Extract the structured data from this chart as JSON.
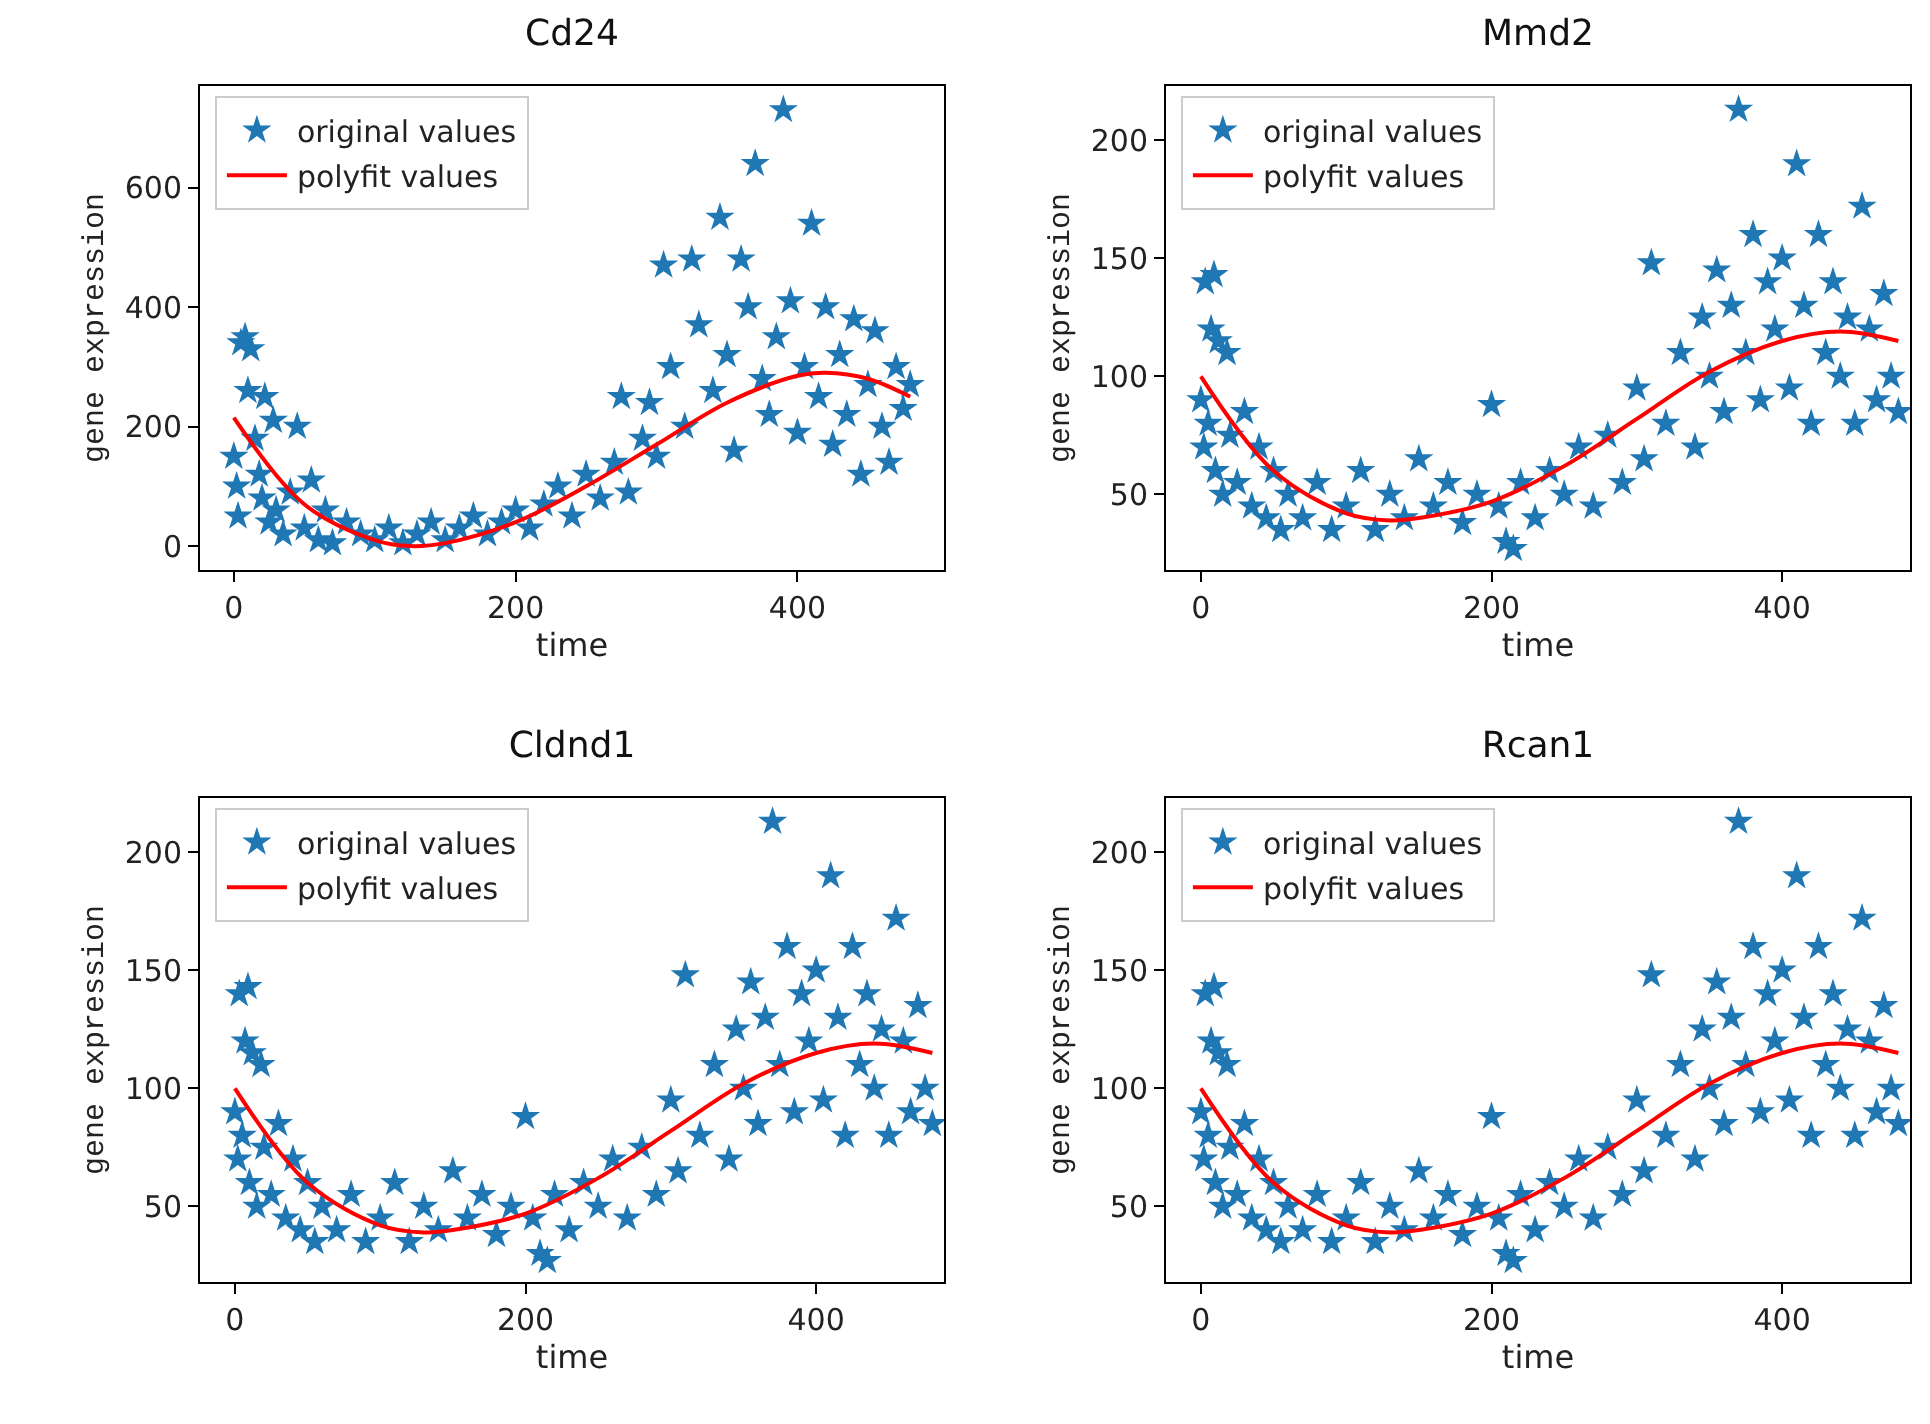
{
  "chart_data": [
    {
      "type": "scatter",
      "title": "Cd24",
      "xlabel": "time",
      "ylabel": "gene expression",
      "xlim": [
        -24,
        504
      ],
      "xticks": [
        0,
        200,
        400
      ],
      "ylim": [
        -40,
        770
      ],
      "yticks": [
        0,
        200,
        400,
        600
      ],
      "grid": false,
      "legend": "top left",
      "series": [
        {
          "name": "original values",
          "type": "scatter",
          "marker": "star",
          "color": "#1f77b4",
          "x": [
            0,
            2,
            3,
            5,
            8,
            10,
            12,
            15,
            18,
            20,
            22,
            25,
            28,
            30,
            35,
            40,
            45,
            50,
            55,
            60,
            65,
            70,
            80,
            90,
            100,
            110,
            120,
            130,
            140,
            150,
            160,
            170,
            180,
            190,
            200,
            210,
            220,
            230,
            240,
            250,
            260,
            270,
            275,
            280,
            290,
            295,
            300,
            305,
            310,
            320,
            325,
            330,
            340,
            345,
            350,
            355,
            360,
            365,
            370,
            375,
            380,
            385,
            390,
            395,
            400,
            405,
            410,
            415,
            420,
            425,
            430,
            435,
            440,
            445,
            450,
            455,
            460,
            465,
            470,
            475,
            480
          ],
          "values": [
            150,
            100,
            50,
            340,
            350,
            260,
            330,
            180,
            120,
            80,
            250,
            40,
            210,
            60,
            20,
            90,
            200,
            30,
            110,
            10,
            60,
            5,
            40,
            20,
            10,
            30,
            5,
            20,
            40,
            10,
            30,
            50,
            20,
            40,
            60,
            30,
            70,
            100,
            50,
            120,
            80,
            140,
            250,
            90,
            180,
            240,
            150,
            470,
            300,
            200,
            480,
            370,
            260,
            550,
            320,
            160,
            480,
            400,
            640,
            280,
            220,
            350,
            730,
            410,
            190,
            300,
            540,
            250,
            400,
            170,
            320,
            220,
            380,
            120,
            270,
            360,
            200,
            140,
            300,
            230,
            270
          ]
        },
        {
          "name": "polyfit values",
          "type": "line",
          "marker": "none",
          "line_style": "solid",
          "color": "#ff0000",
          "x": [
            0,
            50,
            100,
            125,
            150,
            200,
            250,
            300,
            350,
            400,
            420,
            450,
            480
          ],
          "values": [
            215,
            70,
            10,
            0,
            5,
            40,
            100,
            170,
            240,
            285,
            290,
            280,
            250
          ]
        }
      ]
    },
    {
      "type": "scatter",
      "title": "Mmd2",
      "xlabel": "time",
      "ylabel": "gene expression",
      "xlim": [
        -24,
        488
      ],
      "xticks": [
        0,
        200,
        400
      ],
      "ylim": [
        18,
        223
      ],
      "yticks": [
        50,
        100,
        150,
        200
      ],
      "grid": false,
      "legend": "top left",
      "series": [
        {
          "name": "original values",
          "type": "scatter",
          "marker": "star",
          "color": "#1f77b4",
          "x": [
            0,
            2,
            3,
            5,
            7,
            9,
            10,
            12,
            15,
            18,
            20,
            25,
            30,
            35,
            40,
            45,
            50,
            55,
            60,
            70,
            80,
            90,
            100,
            110,
            120,
            130,
            140,
            150,
            160,
            170,
            180,
            190,
            200,
            205,
            210,
            215,
            220,
            230,
            240,
            250,
            260,
            270,
            280,
            290,
            300,
            305,
            310,
            320,
            330,
            340,
            345,
            350,
            355,
            360,
            365,
            370,
            375,
            380,
            385,
            390,
            395,
            400,
            405,
            410,
            415,
            420,
            425,
            430,
            435,
            440,
            445,
            450,
            455,
            460,
            465,
            470,
            475,
            480
          ],
          "values": [
            90,
            70,
            140,
            80,
            120,
            143,
            60,
            115,
            50,
            110,
            75,
            55,
            85,
            45,
            70,
            40,
            60,
            35,
            50,
            40,
            55,
            35,
            45,
            60,
            35,
            50,
            40,
            65,
            45,
            55,
            38,
            50,
            88,
            45,
            30,
            27,
            55,
            40,
            60,
            50,
            70,
            45,
            75,
            55,
            95,
            65,
            148,
            80,
            110,
            70,
            125,
            100,
            145,
            85,
            130,
            213,
            110,
            160,
            90,
            140,
            120,
            150,
            95,
            190,
            130,
            80,
            160,
            110,
            140,
            100,
            125,
            80,
            172,
            120,
            90,
            135,
            100,
            85
          ]
        },
        {
          "name": "polyfit values",
          "type": "line",
          "marker": "none",
          "line_style": "solid",
          "color": "#ff0000",
          "x": [
            0,
            50,
            100,
            130,
            150,
            200,
            250,
            300,
            350,
            400,
            440,
            480
          ],
          "values": [
            100,
            60,
            42,
            39,
            40,
            47,
            62,
            82,
            102,
            115,
            119,
            115
          ]
        }
      ]
    },
    {
      "type": "scatter",
      "title": "Cldnd1",
      "xlabel": "time",
      "ylabel": "gene expression",
      "xlim": [
        -24,
        488
      ],
      "xticks": [
        0,
        200,
        400
      ],
      "ylim": [
        18,
        223
      ],
      "yticks": [
        50,
        100,
        150,
        200
      ],
      "grid": false,
      "legend": "top left",
      "series": [
        {
          "name": "original values",
          "type": "scatter",
          "marker": "star",
          "color": "#1f77b4",
          "x": [
            0,
            2,
            3,
            5,
            7,
            9,
            10,
            12,
            15,
            18,
            20,
            25,
            30,
            35,
            40,
            45,
            50,
            55,
            60,
            70,
            80,
            90,
            100,
            110,
            120,
            130,
            140,
            150,
            160,
            170,
            180,
            190,
            200,
            205,
            210,
            215,
            220,
            230,
            240,
            250,
            260,
            270,
            280,
            290,
            300,
            305,
            310,
            320,
            330,
            340,
            345,
            350,
            355,
            360,
            365,
            370,
            375,
            380,
            385,
            390,
            395,
            400,
            405,
            410,
            415,
            420,
            425,
            430,
            435,
            440,
            445,
            450,
            455,
            460,
            465,
            470,
            475,
            480
          ],
          "values": [
            90,
            70,
            140,
            80,
            120,
            143,
            60,
            115,
            50,
            110,
            75,
            55,
            85,
            45,
            70,
            40,
            60,
            35,
            50,
            40,
            55,
            35,
            45,
            60,
            35,
            50,
            40,
            65,
            45,
            55,
            38,
            50,
            88,
            45,
            30,
            27,
            55,
            40,
            60,
            50,
            70,
            45,
            75,
            55,
            95,
            65,
            148,
            80,
            110,
            70,
            125,
            100,
            145,
            85,
            130,
            213,
            110,
            160,
            90,
            140,
            120,
            150,
            95,
            190,
            130,
            80,
            160,
            110,
            140,
            100,
            125,
            80,
            172,
            120,
            90,
            135,
            100,
            85
          ]
        },
        {
          "name": "polyfit values",
          "type": "line",
          "marker": "none",
          "line_style": "solid",
          "color": "#ff0000",
          "x": [
            0,
            50,
            100,
            130,
            150,
            200,
            250,
            300,
            350,
            400,
            440,
            480
          ],
          "values": [
            100,
            60,
            42,
            39,
            40,
            47,
            62,
            82,
            102,
            115,
            119,
            115
          ]
        }
      ]
    },
    {
      "type": "scatter",
      "title": "Rcan1",
      "xlabel": "time",
      "ylabel": "gene expression",
      "xlim": [
        -24,
        488
      ],
      "xticks": [
        0,
        200,
        400
      ],
      "ylim": [
        18,
        223
      ],
      "yticks": [
        50,
        100,
        150,
        200
      ],
      "grid": false,
      "legend": "top left",
      "series": [
        {
          "name": "original values",
          "type": "scatter",
          "marker": "star",
          "color": "#1f77b4",
          "x": [
            0,
            2,
            3,
            5,
            7,
            9,
            10,
            12,
            15,
            18,
            20,
            25,
            30,
            35,
            40,
            45,
            50,
            55,
            60,
            70,
            80,
            90,
            100,
            110,
            120,
            130,
            140,
            150,
            160,
            170,
            180,
            190,
            200,
            205,
            210,
            215,
            220,
            230,
            240,
            250,
            260,
            270,
            280,
            290,
            300,
            305,
            310,
            320,
            330,
            340,
            345,
            350,
            355,
            360,
            365,
            370,
            375,
            380,
            385,
            390,
            395,
            400,
            405,
            410,
            415,
            420,
            425,
            430,
            435,
            440,
            445,
            450,
            455,
            460,
            465,
            470,
            475,
            480
          ],
          "values": [
            90,
            70,
            140,
            80,
            120,
            143,
            60,
            115,
            50,
            110,
            75,
            55,
            85,
            45,
            70,
            40,
            60,
            35,
            50,
            40,
            55,
            35,
            45,
            60,
            35,
            50,
            40,
            65,
            45,
            55,
            38,
            50,
            88,
            45,
            30,
            27,
            55,
            40,
            60,
            50,
            70,
            45,
            75,
            55,
            95,
            65,
            148,
            80,
            110,
            70,
            125,
            100,
            145,
            85,
            130,
            213,
            110,
            160,
            90,
            140,
            120,
            150,
            95,
            190,
            130,
            80,
            160,
            110,
            140,
            100,
            125,
            80,
            172,
            120,
            90,
            135,
            100,
            85
          ]
        },
        {
          "name": "polyfit values",
          "type": "line",
          "marker": "none",
          "line_style": "solid",
          "color": "#ff0000",
          "x": [
            0,
            50,
            100,
            130,
            150,
            200,
            250,
            300,
            350,
            400,
            440,
            480
          ],
          "values": [
            100,
            60,
            42,
            39,
            40,
            47,
            62,
            82,
            102,
            115,
            119,
            115
          ]
        }
      ]
    }
  ]
}
